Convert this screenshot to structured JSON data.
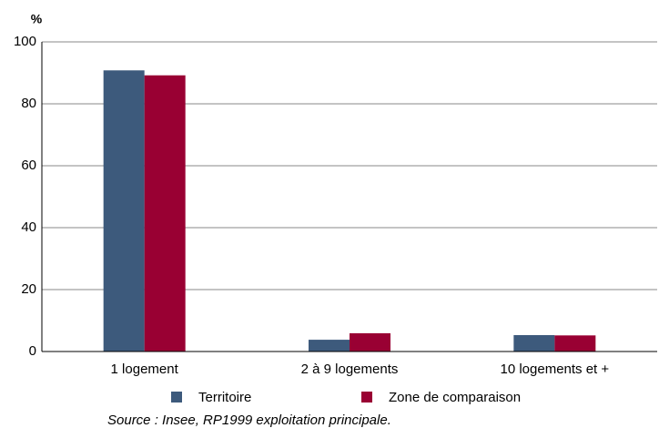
{
  "chart_data": {
    "type": "bar",
    "y_label": "%",
    "categories": [
      "1 logement",
      "2 à 9 logements",
      "10 logements et +"
    ],
    "series": [
      {
        "name": "Territoire",
        "color": "#3d5a7c",
        "values": [
          90.8,
          3.8,
          5.3
        ]
      },
      {
        "name": "Zone de comparaison",
        "color": "#990033",
        "values": [
          89.2,
          5.9,
          5.2
        ]
      }
    ],
    "ylim": [
      0,
      100
    ],
    "yticks": [
      0,
      20,
      40,
      60,
      80,
      100
    ],
    "grid": true,
    "source": "Source : Insee, RP1999 exploitation principale."
  }
}
